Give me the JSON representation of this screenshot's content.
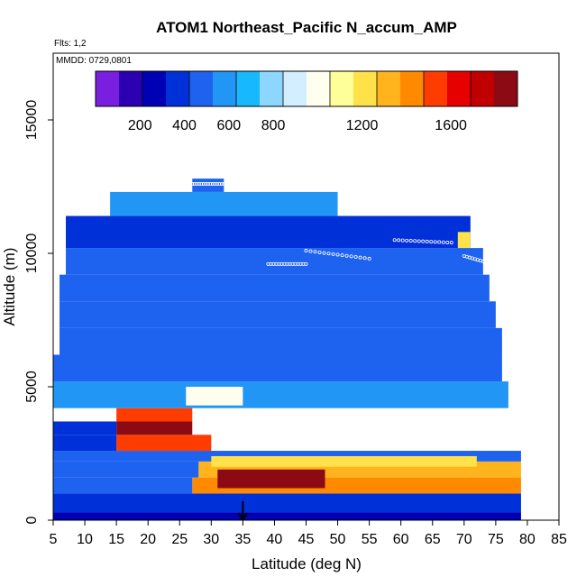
{
  "chart_data": {
    "type": "heatmap",
    "title": "ATOM1 Northeast_Pacific N_accum_AMP",
    "flights_label": "Flts: 1,2",
    "dates_label": "MMDD: 0729,0801",
    "xlabel": "Latitude (deg N)",
    "ylabel": "Altitude (m)",
    "xlim": [
      5,
      85
    ],
    "ylim": [
      0,
      17500
    ],
    "x_ticks": [
      "5",
      "10",
      "15",
      "20",
      "25",
      "30",
      "35",
      "40",
      "45",
      "50",
      "55",
      "60",
      "65",
      "70",
      "75",
      "80",
      "85"
    ],
    "y_ticks": [
      "0",
      "5000",
      "10000",
      "15000"
    ],
    "colorbar": {
      "range": [
        0,
        1900
      ],
      "labels": [
        "200",
        "400",
        "600",
        "800",
        "1200",
        "1600"
      ],
      "colors": [
        "#7a1fe0",
        "#2a00b0",
        "#0000b4",
        "#0030d8",
        "#1e62f0",
        "#2196f5",
        "#18b8ff",
        "#8cd6ff",
        "#d2eeff",
        "#fffff0",
        "#ffff9a",
        "#ffe14a",
        "#ffb41e",
        "#ff8a00",
        "#ff3c00",
        "#e60000",
        "#c00000",
        "#8c0a14"
      ]
    },
    "arrow_latitude": 35,
    "profile_blocks": [
      {
        "alt": [
          0,
          300
        ],
        "lat": [
          5,
          79
        ],
        "value": 260
      },
      {
        "alt": [
          300,
          1000
        ],
        "lat": [
          5,
          79
        ],
        "value": 380
      },
      {
        "alt": [
          1000,
          1600
        ],
        "lat": [
          27,
          79
        ],
        "value": 1400
      },
      {
        "alt": [
          1000,
          1600
        ],
        "lat": [
          5,
          27
        ],
        "value": 470
      },
      {
        "alt": [
          1600,
          2200
        ],
        "lat": [
          28,
          79
        ],
        "value": 1350
      },
      {
        "alt": [
          1600,
          2200
        ],
        "lat": [
          5,
          28
        ],
        "value": 440
      },
      {
        "alt": [
          2200,
          2600
        ],
        "lat": [
          5,
          79
        ],
        "value": 520
      },
      {
        "alt": [
          2600,
          3200
        ],
        "lat": [
          15,
          30
        ],
        "value": 1500
      },
      {
        "alt": [
          2600,
          3200
        ],
        "lat": [
          5,
          15
        ],
        "value": 420
      },
      {
        "alt": [
          3200,
          3700
        ],
        "lat": [
          15,
          27
        ],
        "value": 1850
      },
      {
        "alt": [
          3200,
          3700
        ],
        "lat": [
          5,
          15
        ],
        "value": 400
      },
      {
        "alt": [
          3700,
          4200
        ],
        "lat": [
          15,
          27
        ],
        "value": 1500
      },
      {
        "alt": [
          4200,
          5200
        ],
        "lat": [
          5,
          77
        ],
        "value": 560
      },
      {
        "alt": [
          5200,
          6200
        ],
        "lat": [
          5,
          76
        ],
        "value": 520
      },
      {
        "alt": [
          6200,
          7200
        ],
        "lat": [
          6,
          76
        ],
        "value": 480
      },
      {
        "alt": [
          7200,
          8200
        ],
        "lat": [
          6,
          75
        ],
        "value": 500
      },
      {
        "alt": [
          8200,
          9200
        ],
        "lat": [
          6,
          74
        ],
        "value": 470
      },
      {
        "alt": [
          9200,
          10200
        ],
        "lat": [
          7,
          73
        ],
        "value": 430
      },
      {
        "alt": [
          10200,
          11400
        ],
        "lat": [
          7,
          71
        ],
        "value": 420
      },
      {
        "alt": [
          11400,
          12300
        ],
        "lat": [
          14,
          50
        ],
        "value": 560
      },
      {
        "alt": [
          12300,
          12800
        ],
        "lat": [
          27,
          32
        ],
        "value": 500
      }
    ],
    "highlight_blocks": [
      {
        "alt": [
          2000,
          2400
        ],
        "lat": [
          30,
          72
        ],
        "value": 1200
      },
      {
        "alt": [
          1200,
          1900
        ],
        "lat": [
          31,
          48
        ],
        "value": 1800
      },
      {
        "alt": [
          4300,
          5000
        ],
        "lat": [
          26,
          35
        ],
        "value": 950
      },
      {
        "alt": [
          10200,
          10800
        ],
        "lat": [
          69,
          71
        ],
        "value": 1250
      }
    ],
    "flight_tracks": [
      {
        "lat": [
          27,
          32
        ],
        "alt": [
          12600,
          12600
        ]
      },
      {
        "lat": [
          39,
          45
        ],
        "alt": [
          9600,
          9600
        ]
      },
      {
        "lat": [
          45,
          55
        ],
        "alt": [
          10100,
          9800
        ]
      },
      {
        "lat": [
          59,
          68
        ],
        "alt": [
          10500,
          10400
        ]
      },
      {
        "lat": [
          70,
          76
        ],
        "alt": [
          9900,
          9500
        ]
      }
    ]
  }
}
